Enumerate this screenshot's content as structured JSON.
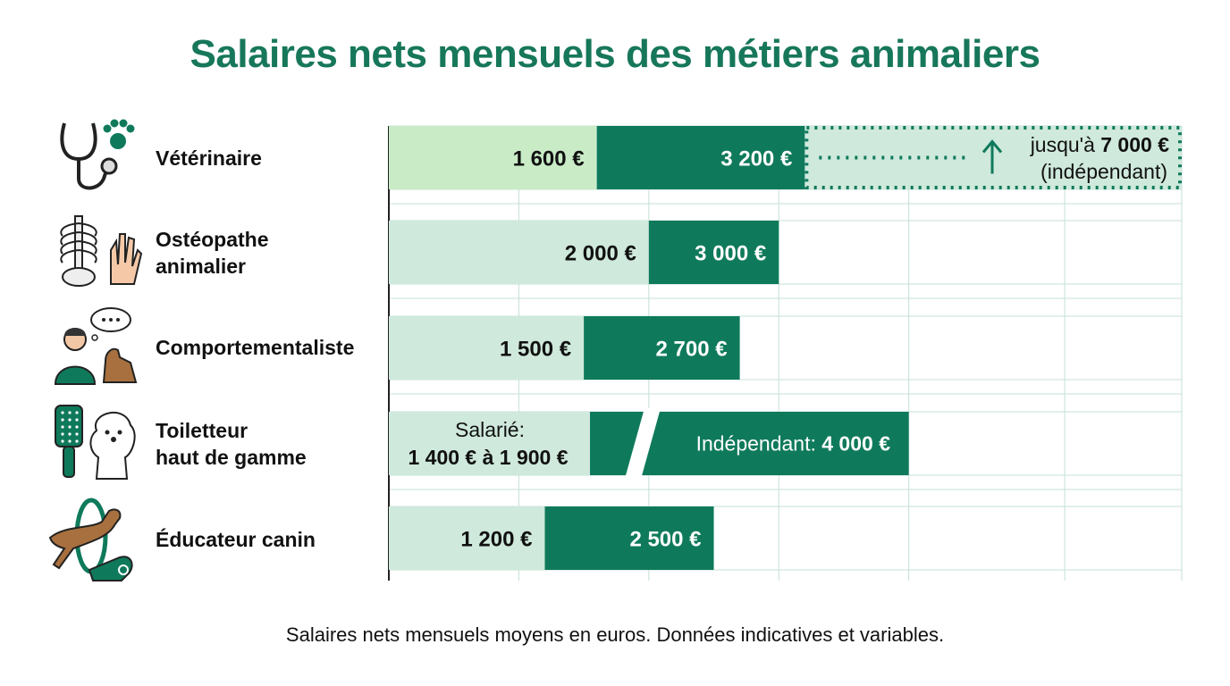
{
  "chart_data": {
    "type": "bar",
    "title": "Salaires nets mensuels des métiers animaliers",
    "footnote": "Salaires nets mensuels moyens en euros. Données indicatives et variables.",
    "xlabel": "",
    "ylabel": "",
    "xlim": [
      0,
      6100
    ],
    "grid": true,
    "categories": [
      {
        "id": "veterinaire",
        "label_lines": [
          "Vétérinaire"
        ],
        "icon": "stethoscope-paw-icon",
        "low": 1600,
        "high": 3200,
        "low_label": "1 600 €",
        "high_label": "3 200 €",
        "extension": {
          "max": 7000,
          "label_prefix": "jusqu'à",
          "label_value": "7 000 €",
          "label_note": "(indépendant)"
        }
      },
      {
        "id": "osteopathe",
        "label_lines": [
          "Ostéopathe",
          "animalier"
        ],
        "icon": "skeleton-hand-icon",
        "low": 2000,
        "high": 3000,
        "low_label": "2 000 €",
        "high_label": "3 000 €"
      },
      {
        "id": "comportementaliste",
        "label_lines": [
          "Comportementaliste"
        ],
        "icon": "person-dog-thought-icon",
        "low": 1500,
        "high": 2700,
        "low_label": "1 500 €",
        "high_label": "2 700 €"
      },
      {
        "id": "toiletteur",
        "label_lines": [
          "Toiletteur",
          "haut de gamme"
        ],
        "icon": "brush-poodle-icon",
        "low": 1900,
        "high": 4000,
        "low_label_lines": [
          "Salarié:",
          "1 400 € à 1 900 €"
        ],
        "salarie_range": [
          1400,
          1900
        ],
        "high_label_prefix": "Indépendant:",
        "high_label_value": "4 000 €",
        "axis_break": true
      },
      {
        "id": "educateur",
        "label_lines": [
          "Éducateur canin"
        ],
        "icon": "dog-hoop-whistle-icon",
        "low": 1200,
        "high": 2500,
        "low_label": "1 200 €",
        "high_label": "2 500 €"
      }
    ]
  },
  "colors": {
    "title": "#17775a",
    "dark_bar": "#0f7a5b",
    "light_bar": "#cfe9dc",
    "light_bar_first": "#c9ecc7",
    "grid": "#c6e0d4",
    "axis": "#222222"
  }
}
